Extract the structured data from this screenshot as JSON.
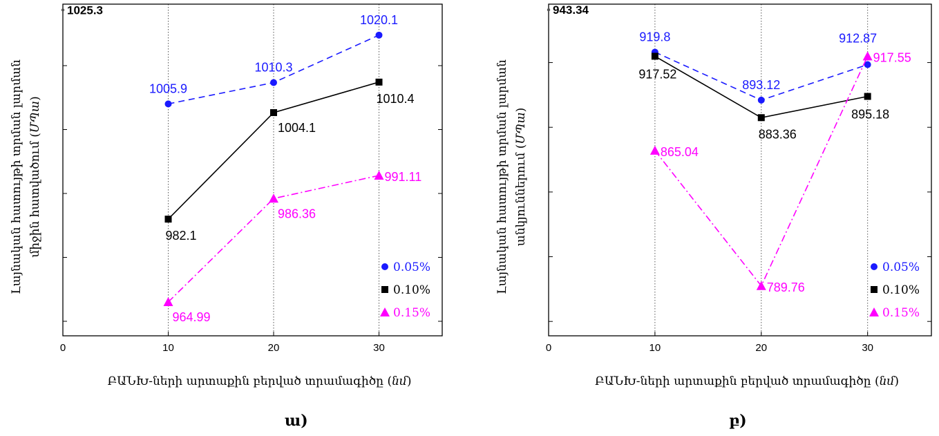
{
  "captions": {
    "left": "ա)",
    "right": "բ)"
  },
  "chart_data": [
    {
      "type": "line",
      "panel": "left",
      "xlabel": "ԲԱՆԽ-ների արտաքին բերված տրամագիծը (",
      "xlabel_unit": "նմ",
      "xlabel_close": ")",
      "ylabel_line1": "Լայնական հատույթի տրման լարման",
      "ylabel_line2": "միջին հատվածում (",
      "ylabel_unit": "ՄՊա",
      "ylabel_close": ")",
      "y_marker_label": "1025.3",
      "x": [
        10,
        20,
        30
      ],
      "xticks": [
        "0",
        "10",
        "20",
        "30"
      ],
      "xlim": [
        0,
        36
      ],
      "ylim": [
        958,
        1026.5
      ],
      "y_marker_value": 1025.3,
      "y_tick_values": [
        961,
        974.2,
        987.4,
        1000.6,
        1013.8
      ],
      "series": [
        {
          "name": "0.05%",
          "color": "#1a1aff",
          "marker": "circle",
          "dash": "9 6",
          "values": [
            1005.9,
            1010.3,
            1020.1
          ],
          "labels": [
            "1005.9",
            "1010.3",
            "1020.1"
          ],
          "label_pos": [
            "above",
            "above",
            "above"
          ]
        },
        {
          "name": "0.10%",
          "color": "#000000",
          "marker": "square",
          "dash": "",
          "values": [
            982.1,
            1004.1,
            1010.4
          ],
          "labels": [
            "982.1",
            "1004.1",
            "1010.4"
          ],
          "label_pos": [
            "below",
            "below-right",
            "below"
          ]
        },
        {
          "name": "0.15%",
          "color": "#ff00ff",
          "marker": "triangle",
          "dash": "10 4 2 4",
          "values": [
            964.99,
            986.36,
            991.11
          ],
          "labels": [
            "964.99",
            "986.36",
            "991.11"
          ],
          "label_pos": [
            "below-right",
            "below-right",
            "right"
          ]
        }
      ],
      "legend_position": "bottom-right",
      "grid": "vertical dotted"
    },
    {
      "type": "line",
      "panel": "right",
      "xlabel": "ԲԱՆԽ-ների արտաքին բերված տրամագիծը (",
      "xlabel_unit": "նմ",
      "xlabel_close": ")",
      "ylabel_line1": "Լայնական հատույթի տրման լարման",
      "ylabel_line2": "անկյուններում (",
      "ylabel_unit": "ՄՊա",
      "ylabel_close": ")",
      "y_marker_label": "943.34",
      "x": [
        10,
        20,
        30
      ],
      "xticks": [
        "0",
        "10",
        "20",
        "30"
      ],
      "xlim": [
        0,
        36
      ],
      "ylim": [
        762,
        946.5
      ],
      "y_marker_value": 943.34,
      "y_tick_values": [
        770,
        806,
        842,
        878,
        914
      ],
      "series": [
        {
          "name": "0.05%",
          "color": "#1a1aff",
          "marker": "circle",
          "dash": "9 6",
          "values": [
            919.8,
            893.12,
            912.87
          ],
          "labels": [
            "919.8",
            "893.12",
            "912.87"
          ],
          "label_pos": [
            "above",
            "above",
            "above-left"
          ]
        },
        {
          "name": "0.10%",
          "color": "#000000",
          "marker": "square",
          "dash": "",
          "values": [
            917.52,
            883.36,
            895.18
          ],
          "labels": [
            "917.52",
            "883.36",
            "895.18"
          ],
          "label_pos": [
            "below-left",
            "below",
            "below-left"
          ]
        },
        {
          "name": "0.15%",
          "color": "#ff00ff",
          "marker": "triangle",
          "dash": "10 4 2 4",
          "values": [
            865.04,
            789.76,
            917.55
          ],
          "labels": [
            "865.04",
            "789.76",
            "917.55"
          ],
          "label_pos": [
            "right",
            "right",
            "right"
          ]
        }
      ],
      "legend_position": "bottom-right",
      "grid": "vertical dotted"
    }
  ]
}
